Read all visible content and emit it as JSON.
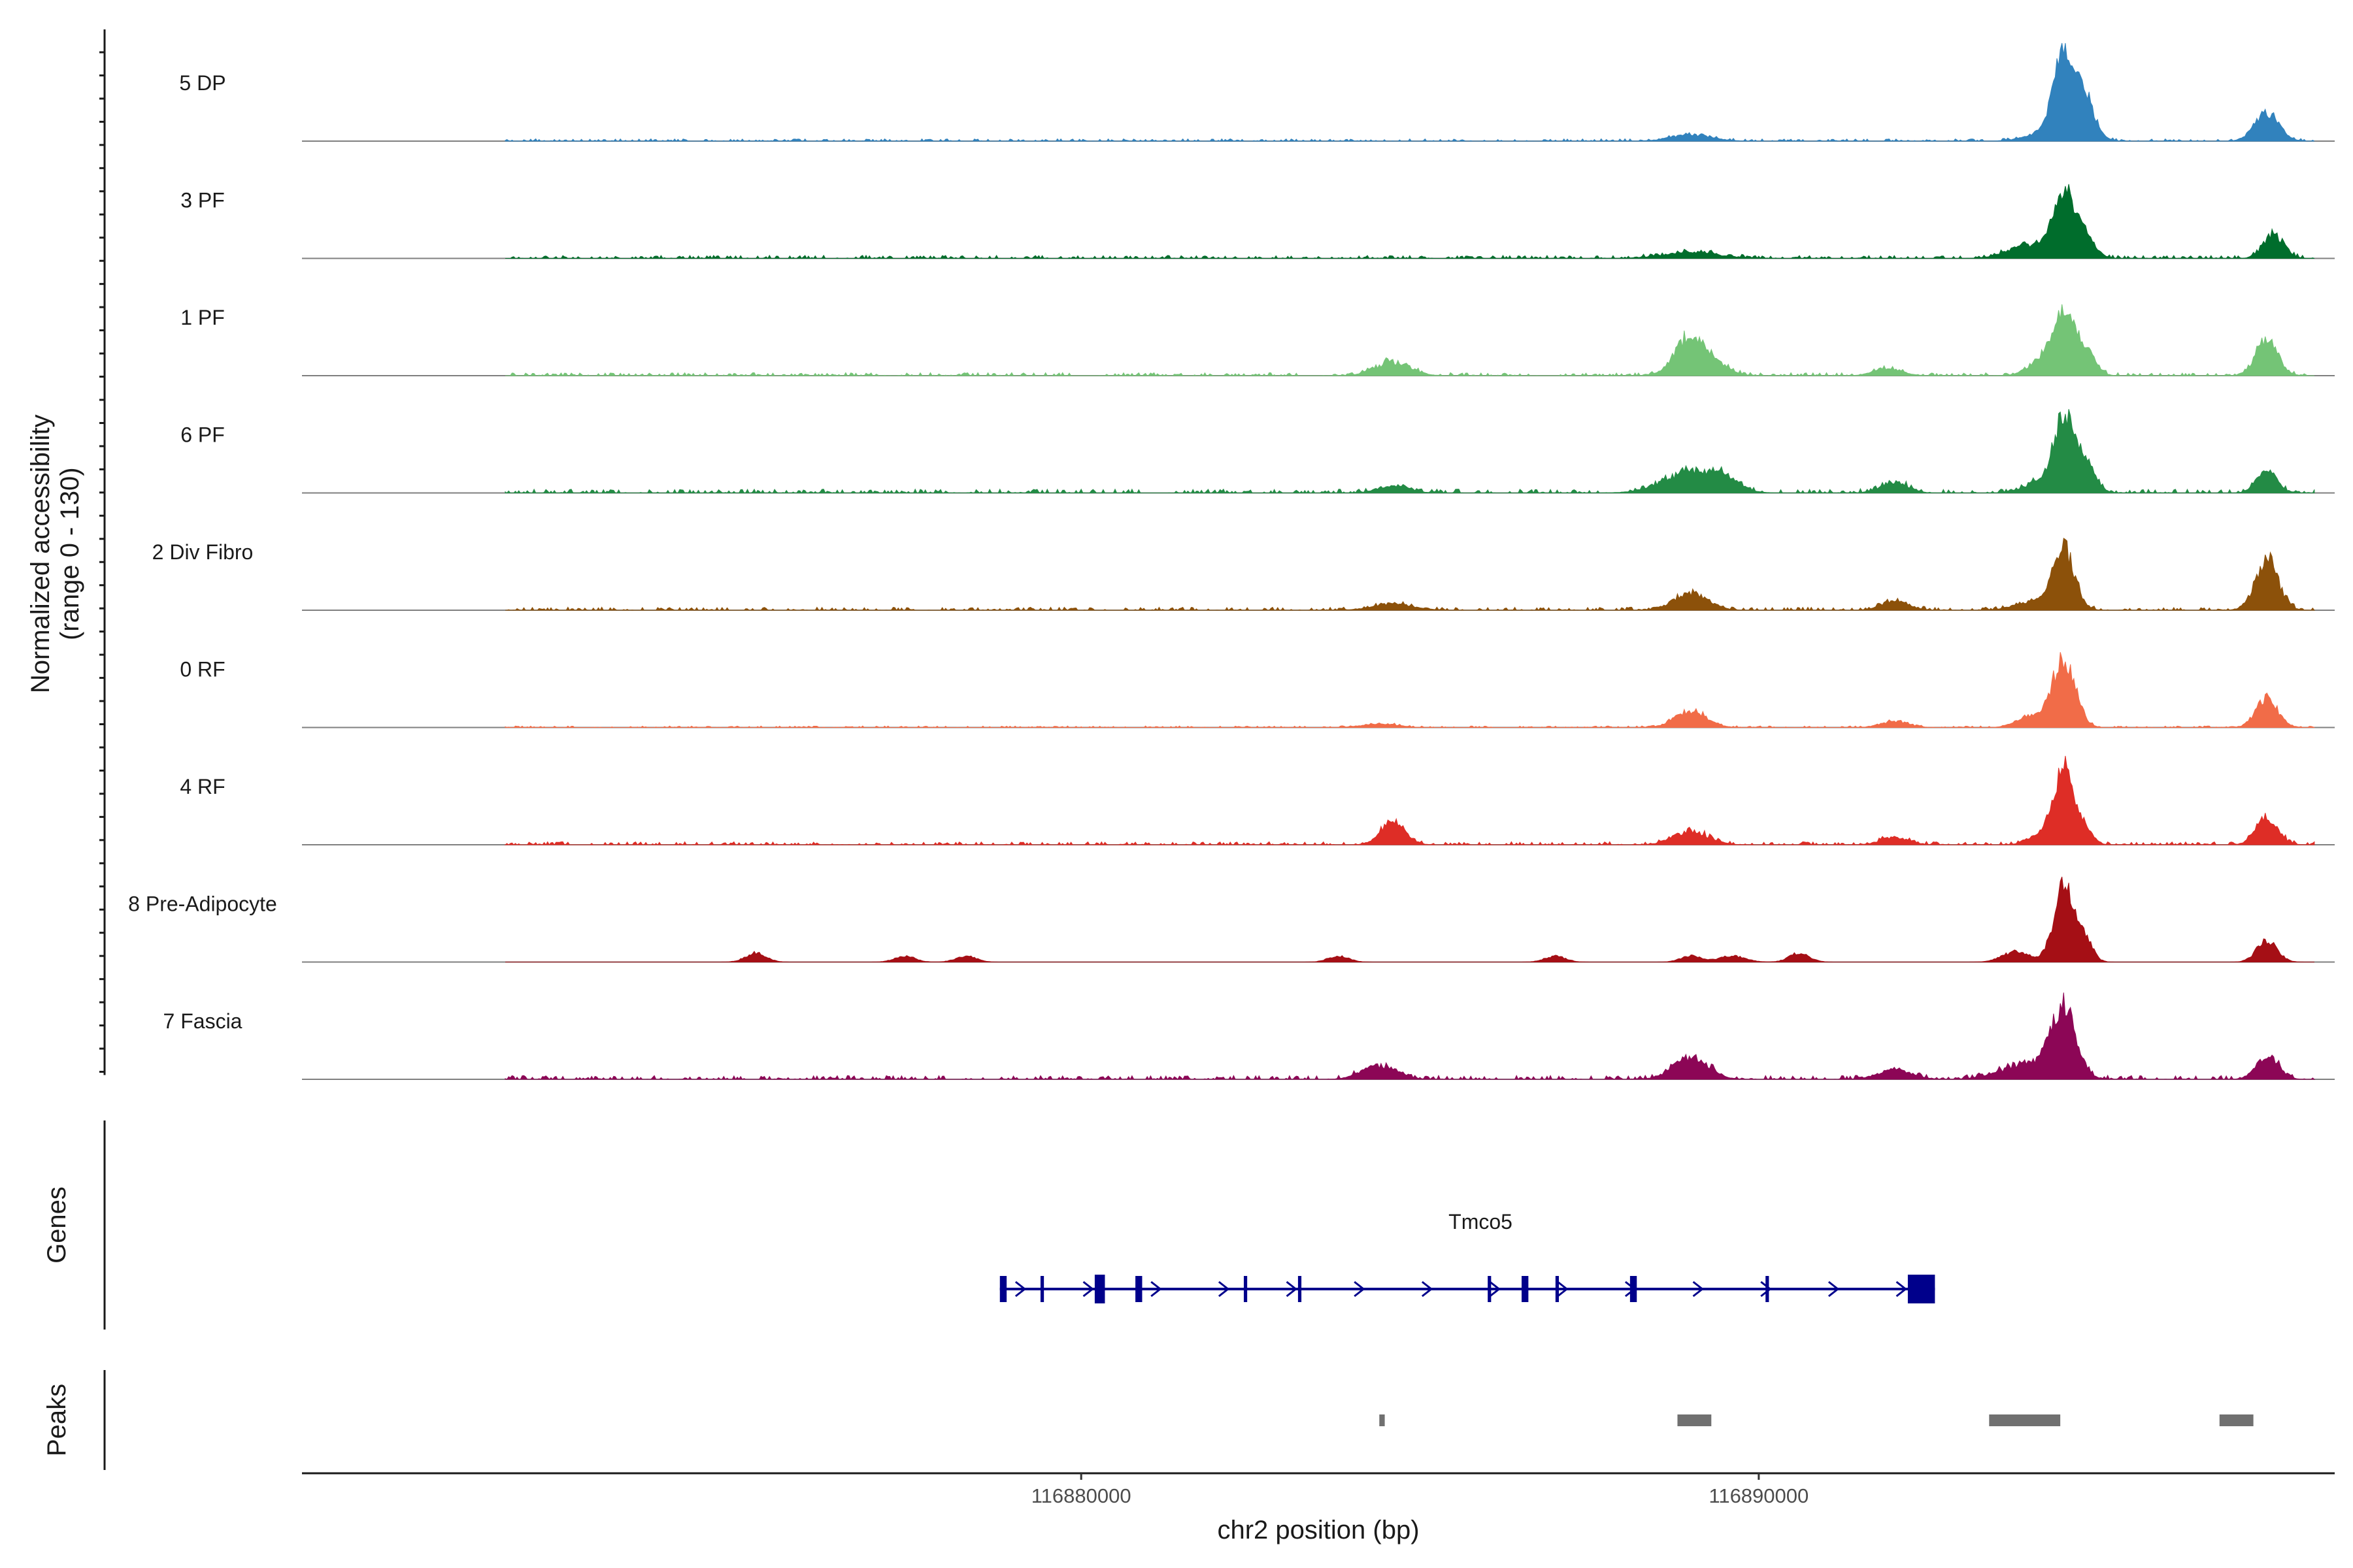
{
  "chart_data": {
    "type": "area",
    "description_units": "bp",
    "y_axis_title_line1": "Normalized accessibility",
    "y_axis_title_line2": "(range 0 - 130)",
    "y_range": [
      0,
      130
    ],
    "x_axis_title": "chr2 position (bp)",
    "x_range": [
      116868500,
      116898500
    ],
    "x_ticks": [
      116880000,
      116890000
    ],
    "x_tick_labels": [
      "116880000",
      "116890000"
    ],
    "data_x_range": [
      116871500,
      116898200
    ],
    "tracks": [
      {
        "name": "5 DP",
        "color": "#3182bd",
        "peaks": [
          [
            116889000,
            8,
            300
          ],
          [
            116894300,
            12,
            300
          ],
          [
            116894500,
            105,
            150
          ],
          [
            116894800,
            55,
            160
          ],
          [
            116897500,
            38,
            180
          ]
        ],
        "baseline_noise": 3
      },
      {
        "name": "3 PF",
        "color": "#006d2c",
        "peaks": [
          [
            116889000,
            8,
            400
          ],
          [
            116894000,
            18,
            300
          ],
          [
            116894500,
            88,
            150
          ],
          [
            116894800,
            30,
            150
          ],
          [
            116897600,
            32,
            150
          ]
        ],
        "baseline_noise": 4
      },
      {
        "name": "1 PF",
        "color": "#74c476",
        "peaks": [
          [
            116884600,
            18,
            250
          ],
          [
            116889000,
            52,
            230
          ],
          [
            116889400,
            10,
            200
          ],
          [
            116891900,
            10,
            200
          ],
          [
            116894200,
            22,
            200
          ],
          [
            116894500,
            72,
            150
          ],
          [
            116894800,
            35,
            150
          ],
          [
            116897500,
            50,
            160
          ]
        ],
        "baseline_noise": 4
      },
      {
        "name": "6 PF",
        "color": "#238b45",
        "peaks": [
          [
            116884600,
            10,
            220
          ],
          [
            116889000,
            28,
            400
          ],
          [
            116889500,
            14,
            200
          ],
          [
            116892000,
            14,
            200
          ],
          [
            116894200,
            16,
            250
          ],
          [
            116894500,
            92,
            140
          ],
          [
            116894800,
            42,
            150
          ],
          [
            116897500,
            28,
            150
          ]
        ],
        "baseline_noise": 5
      },
      {
        "name": "2 Div Fibro",
        "color": "#8c510a",
        "peaks": [
          [
            116884600,
            8,
            300
          ],
          [
            116889000,
            22,
            250
          ],
          [
            116892000,
            12,
            200
          ],
          [
            116894000,
            10,
            250
          ],
          [
            116894500,
            82,
            160
          ],
          [
            116897500,
            65,
            170
          ]
        ],
        "baseline_noise": 4
      },
      {
        "name": "0 RF",
        "color": "#f16c48",
        "peaks": [
          [
            116884400,
            5,
            250
          ],
          [
            116889000,
            22,
            230
          ],
          [
            116892000,
            8,
            200
          ],
          [
            116894000,
            14,
            200
          ],
          [
            116894500,
            90,
            170
          ],
          [
            116897500,
            38,
            160
          ]
        ],
        "baseline_noise": 2
      },
      {
        "name": "4 RF",
        "color": "#de2d26",
        "peaks": [
          [
            116884600,
            30,
            180
          ],
          [
            116889000,
            18,
            250
          ],
          [
            116892000,
            10,
            200
          ],
          [
            116894200,
            14,
            200
          ],
          [
            116894500,
            95,
            140
          ],
          [
            116894800,
            22,
            120
          ],
          [
            116897500,
            35,
            160
          ]
        ],
        "baseline_noise": 4
      },
      {
        "name": "8 Pre-Adipocyte",
        "color": "#a50f15",
        "peaks": [
          [
            116875200,
            12,
            150
          ],
          [
            116877400,
            8,
            150
          ],
          [
            116878300,
            8,
            150
          ],
          [
            116883800,
            8,
            150
          ],
          [
            116887000,
            8,
            150
          ],
          [
            116889000,
            8,
            150
          ],
          [
            116889600,
            8,
            200
          ],
          [
            116890600,
            12,
            150
          ],
          [
            116893800,
            14,
            200
          ],
          [
            116894500,
            95,
            150
          ],
          [
            116894800,
            30,
            120
          ],
          [
            116897500,
            28,
            150
          ]
        ],
        "baseline_noise": 0
      },
      {
        "name": "7 Fascia",
        "color": "#8c0656",
        "peaks": [
          [
            116884400,
            18,
            250
          ],
          [
            116889000,
            30,
            250
          ],
          [
            116892000,
            12,
            250
          ],
          [
            116894000,
            20,
            400
          ],
          [
            116894500,
            88,
            180
          ],
          [
            116897500,
            32,
            160
          ]
        ],
        "baseline_noise": 5
      }
    ],
    "genes": {
      "title": "Genes",
      "name": "Tmco5",
      "color": "#00008b",
      "start": 116878800,
      "end": 116892600,
      "strand": "+",
      "exons": [
        [
          116878800,
          116878900
        ],
        [
          116879400,
          116879450
        ],
        [
          116880200,
          116880350
        ],
        [
          116880800,
          116880900
        ],
        [
          116882400,
          116882450
        ],
        [
          116883200,
          116883250
        ],
        [
          116886000,
          116886050
        ],
        [
          116886500,
          116886600
        ],
        [
          116887000,
          116887050
        ],
        [
          116888100,
          116888200
        ],
        [
          116890100,
          116890150
        ],
        [
          116892200,
          116892600
        ]
      ]
    },
    "peaks_track": {
      "title": "Peaks",
      "color": "#707070",
      "regions": [
        [
          116884400,
          116884480
        ],
        [
          116888800,
          116889300
        ],
        [
          116893400,
          116894450
        ],
        [
          116896800,
          116897300
        ]
      ]
    }
  }
}
